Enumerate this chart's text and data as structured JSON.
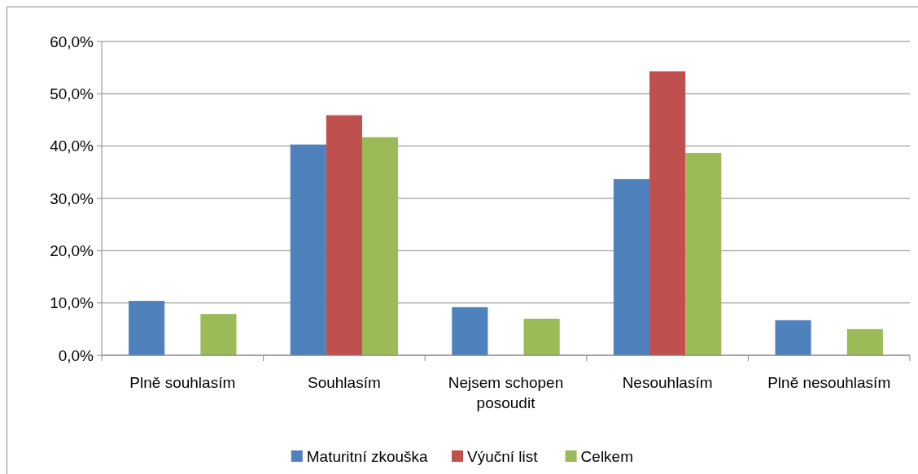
{
  "chart_data": {
    "type": "bar",
    "categories": [
      "Plně souhlasím",
      "Souhlasím",
      "Nejsem schopen posoudit",
      "Nesouhlasím",
      "Plně nesouhlasím"
    ],
    "series": [
      {
        "name": "Maturitní zkouška",
        "color": "#4f81bd",
        "values": [
          10.4,
          40.3,
          9.2,
          33.7,
          6.7
        ]
      },
      {
        "name": "Výuční list",
        "color": "#c0504d",
        "values": [
          0,
          45.9,
          0,
          54.3,
          0
        ]
      },
      {
        "name": "Celkem",
        "color": "#9bbb59",
        "values": [
          7.9,
          41.7,
          7.0,
          38.7,
          5.0
        ]
      }
    ],
    "ylim": [
      0,
      60
    ],
    "yticks": [
      {
        "value": 0,
        "label": "0,0%"
      },
      {
        "value": 10,
        "label": "10,0%"
      },
      {
        "value": 20,
        "label": "20,0%"
      },
      {
        "value": 30,
        "label": "30,0%"
      },
      {
        "value": 40,
        "label": "40,0%"
      },
      {
        "value": 50,
        "label": "50,0%"
      },
      {
        "value": 60,
        "label": "60,0%"
      }
    ],
    "grid": "y",
    "legend": "bottom"
  }
}
